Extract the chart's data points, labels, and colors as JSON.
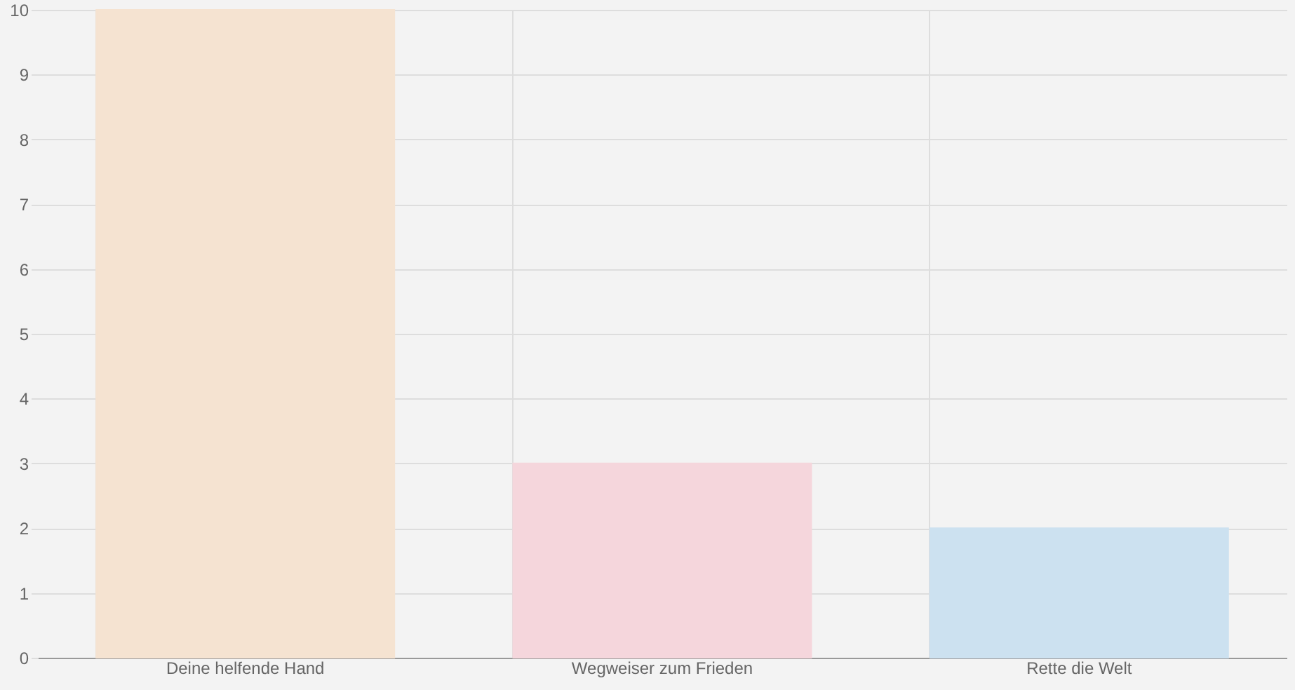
{
  "chart_data": {
    "type": "bar",
    "categories": [
      "Deine helfende Hand",
      "Wegweiser zum Frieden",
      "Rette die Welt"
    ],
    "values": [
      10,
      3,
      2
    ],
    "colors": [
      "#f5e3d1",
      "#f5d6dc",
      "#cce1f0"
    ],
    "ylim": [
      0,
      10
    ],
    "yticks": [
      0,
      1,
      2,
      3,
      4,
      5,
      6,
      7,
      8,
      9,
      10
    ],
    "grid": true
  }
}
